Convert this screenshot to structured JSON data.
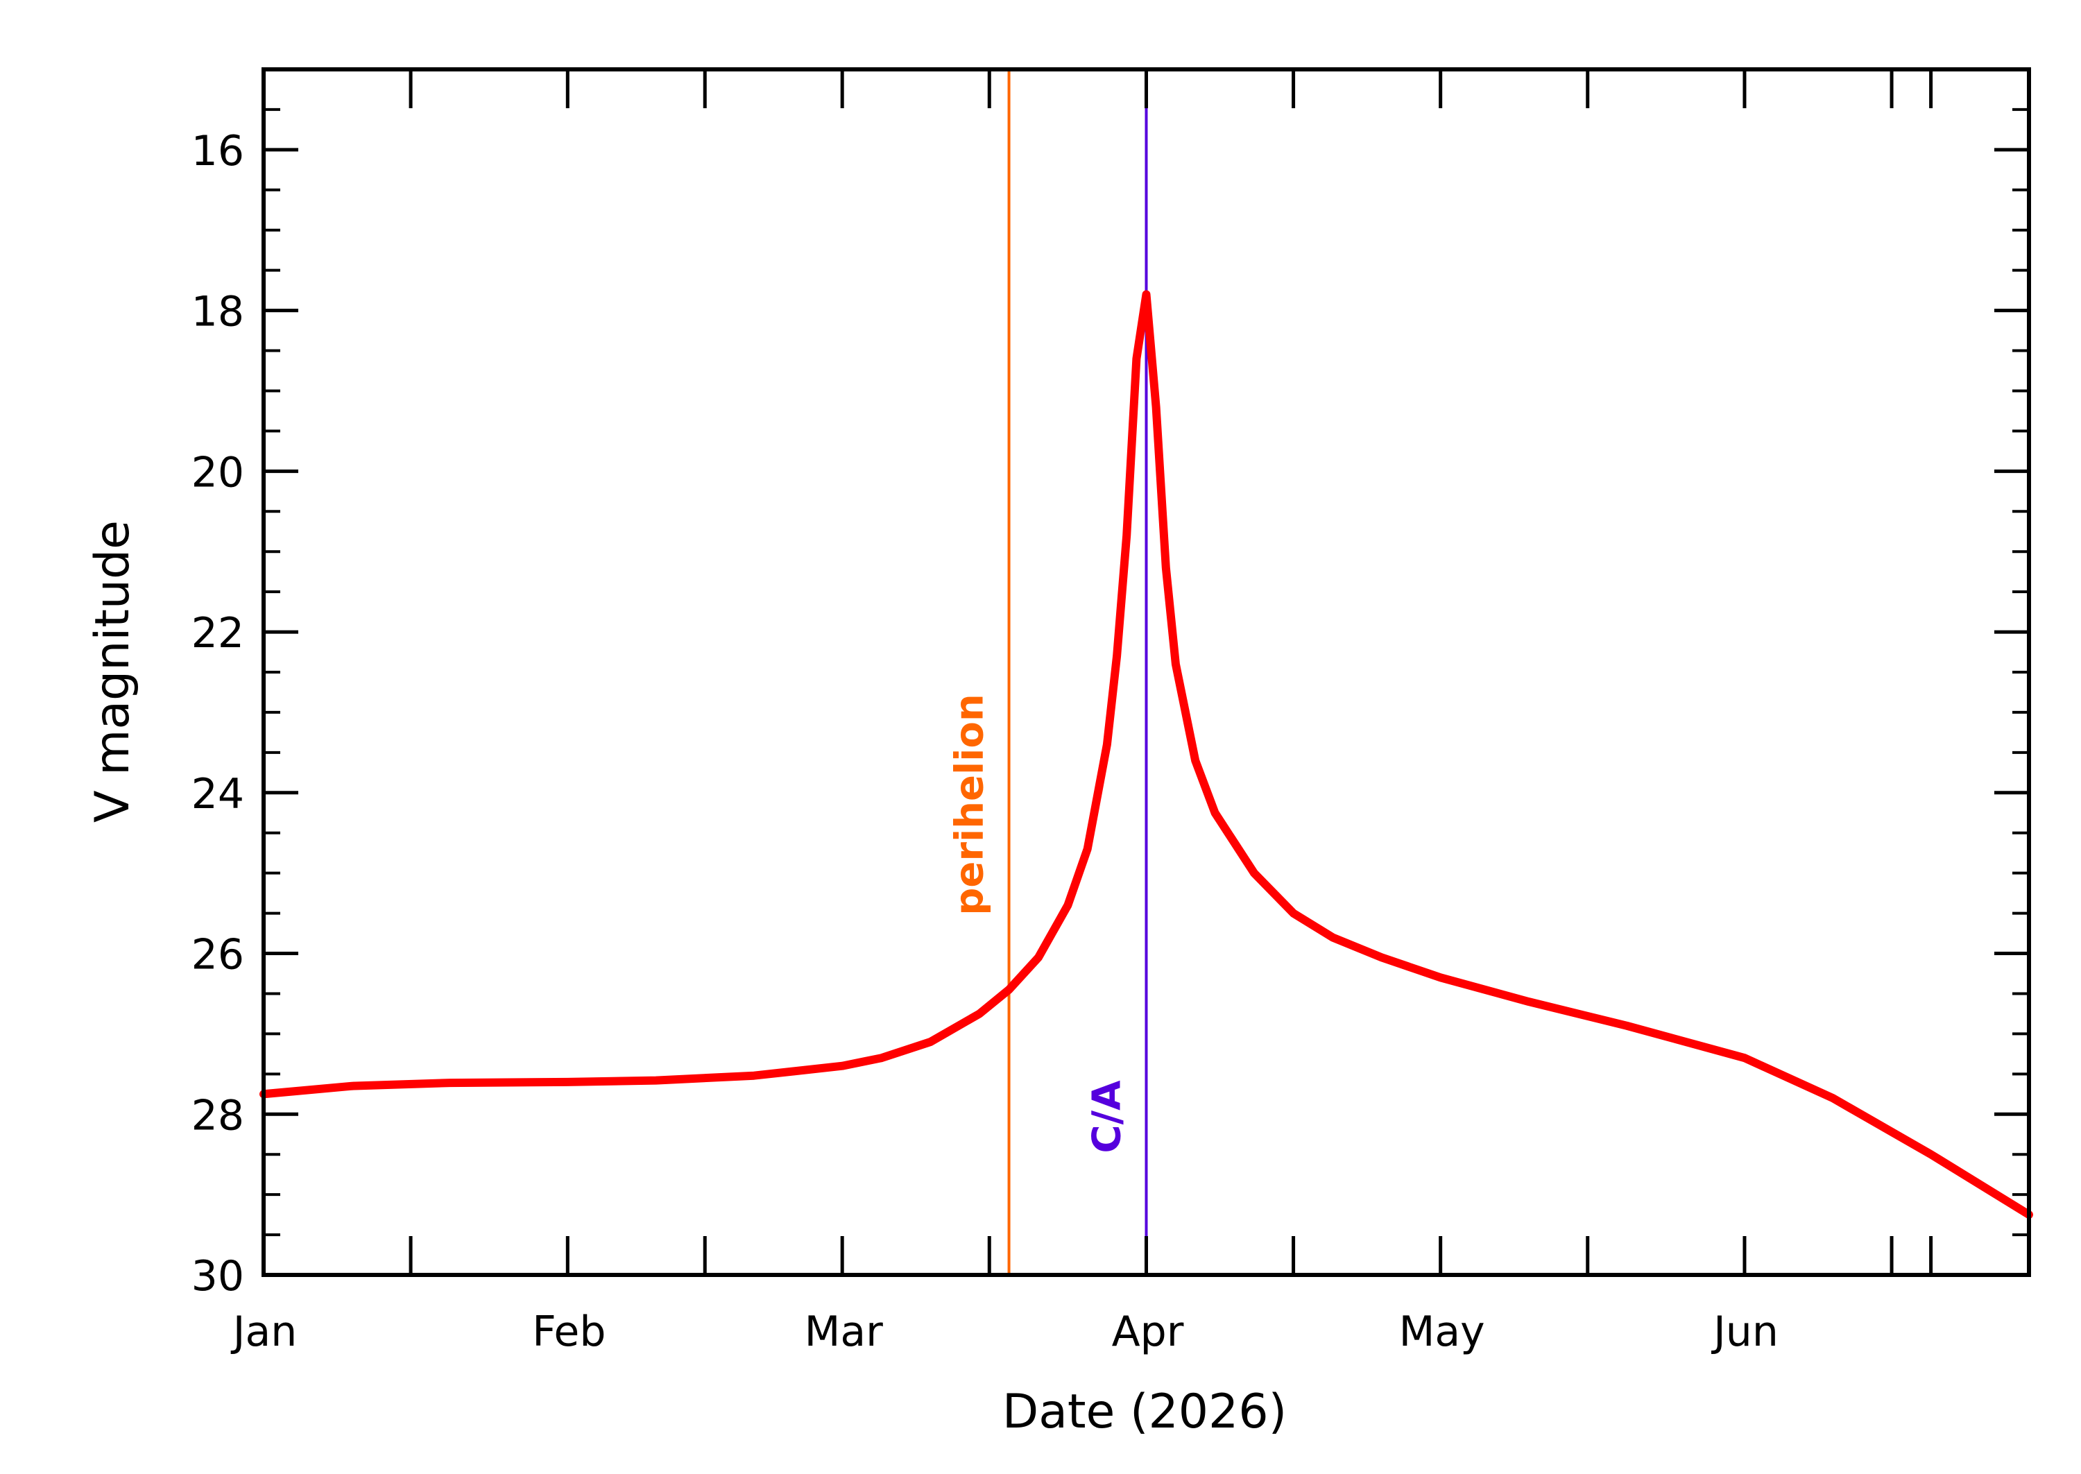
{
  "chart_data": {
    "type": "line",
    "title": "",
    "xlabel": "Date (2026)",
    "ylabel": "V magnitude",
    "x_unit": "date",
    "xlim": [
      "2026-01-01",
      "2026-06-30"
    ],
    "ylim": [
      30,
      15
    ],
    "y_inverted": true,
    "x_ticks": [
      {
        "date": "2026-01-01",
        "label": "Jan"
      },
      {
        "date": "2026-02-01",
        "label": "Feb"
      },
      {
        "date": "2026-03-01",
        "label": "Mar"
      },
      {
        "date": "2026-04-01",
        "label": "Apr"
      },
      {
        "date": "2026-05-01",
        "label": "May"
      },
      {
        "date": "2026-06-01",
        "label": "Jun"
      }
    ],
    "y_major_ticks": [
      16,
      18,
      20,
      22,
      24,
      26,
      28,
      30
    ],
    "y_minor_step": 0.5,
    "grid": false,
    "series": [
      {
        "color": "#ff0000",
        "points": [
          [
            "2026-01-01",
            27.75
          ],
          [
            "2026-01-10",
            27.65
          ],
          [
            "2026-01-20",
            27.61
          ],
          [
            "2026-02-01",
            27.6
          ],
          [
            "2026-02-10",
            27.58
          ],
          [
            "2026-02-20",
            27.52
          ],
          [
            "2026-03-01",
            27.4
          ],
          [
            "2026-03-05",
            27.3
          ],
          [
            "2026-03-10",
            27.1
          ],
          [
            "2026-03-15",
            26.75
          ],
          [
            "2026-03-18",
            26.45
          ],
          [
            "2026-03-21",
            26.05
          ],
          [
            "2026-03-24",
            25.4
          ],
          [
            "2026-03-26",
            24.7
          ],
          [
            "2026-03-28",
            23.4
          ],
          [
            "2026-03-29",
            22.3
          ],
          [
            "2026-03-30",
            20.8
          ],
          [
            "2026-03-31",
            18.6
          ],
          [
            "2026-04-01",
            17.8
          ],
          [
            "2026-04-02",
            19.2
          ],
          [
            "2026-04-03",
            21.2
          ],
          [
            "2026-04-04",
            22.4
          ],
          [
            "2026-04-06",
            23.6
          ],
          [
            "2026-04-08",
            24.25
          ],
          [
            "2026-04-12",
            25.0
          ],
          [
            "2026-04-16",
            25.5
          ],
          [
            "2026-04-20",
            25.8
          ],
          [
            "2026-04-25",
            26.05
          ],
          [
            "2026-05-01",
            26.3
          ],
          [
            "2026-05-10",
            26.6
          ],
          [
            "2026-05-20",
            26.9
          ],
          [
            "2026-06-01",
            27.3
          ],
          [
            "2026-06-10",
            27.8
          ],
          [
            "2026-06-20",
            28.5
          ],
          [
            "2026-06-30",
            29.25
          ]
        ]
      }
    ],
    "events": [
      {
        "label": "perihelion",
        "date": "2026-03-18",
        "color": "#ff6600"
      },
      {
        "label": "C/A",
        "date": "2026-04-01",
        "color": "#5500dd"
      }
    ]
  }
}
